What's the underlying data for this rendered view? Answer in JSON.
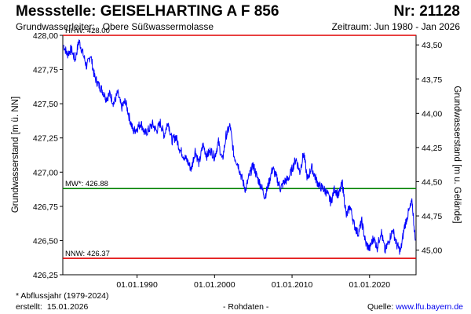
{
  "header": {
    "title": "Messstelle: GEISELHARTING A F 856",
    "nr": "Nr: 21128",
    "aquifer_label": "Grundwasserleiter:",
    "aquifer_value": "Obere Süßwassermolasse",
    "period": "Zeitraum: Jun 1980 - Jan 2026"
  },
  "footer": {
    "footnote": "* Abflussjahr (1979-2024)",
    "created_label": "erstellt:",
    "created_date": "15.01.2026",
    "raw_data": "- Rohdaten -",
    "source_label": "Quelle:",
    "source_link": "www.lfu.bayern.de"
  },
  "colors": {
    "series": "#0000ff",
    "hhw_nnw": "#e00000",
    "mw": "#008000",
    "link": "#0000ee"
  },
  "chart_data": {
    "type": "line",
    "title": "Messstelle: GEISELHARTING A F 856",
    "ylabel": "Grundwasserstand [m ü. NN]",
    "ylabel_right": "Grundwasserstand [m u. Gelände]",
    "xlim": [
      "1980-06",
      "2026-01"
    ],
    "ylim": [
      426.25,
      428.0
    ],
    "y2lim": [
      43.43,
      45.18
    ],
    "x_tick_labels": [
      "01.01.1990",
      "01.01.2000",
      "01.01.2010",
      "01.01.2020"
    ],
    "x_tick_years": [
      1990,
      2000,
      2010,
      2020
    ],
    "y_tick_labels": [
      "428,00",
      "427,75",
      "427,50",
      "427,25",
      "427,00",
      "426,75",
      "426,50",
      "426,25"
    ],
    "y_tick_values": [
      428.0,
      427.75,
      427.5,
      427.25,
      427.0,
      426.75,
      426.5,
      426.25
    ],
    "y2_tick_labels": [
      "43,50",
      "43,75",
      "44,00",
      "44,25",
      "44,50",
      "44,75",
      "45,00"
    ],
    "y2_tick_values": [
      43.5,
      43.75,
      44.0,
      44.25,
      44.5,
      44.75,
      45.0
    ],
    "reference_lines": [
      {
        "label": "HHW: 428.00",
        "value": 428.0,
        "color": "#e00000"
      },
      {
        "label": "MW*: 426.88",
        "value": 426.88,
        "color": "#008000"
      },
      {
        "label": "NNW: 426.37",
        "value": 426.37,
        "color": "#e00000"
      }
    ],
    "x": [
      1980.5,
      1981.0,
      1981.5,
      1982.0,
      1982.5,
      1983.0,
      1983.5,
      1984.0,
      1984.5,
      1985.0,
      1985.5,
      1986.0,
      1986.5,
      1987.0,
      1987.5,
      1988.0,
      1988.5,
      1989.0,
      1989.5,
      1990.0,
      1990.5,
      1991.0,
      1991.5,
      1992.0,
      1992.5,
      1993.0,
      1993.5,
      1994.0,
      1994.5,
      1995.0,
      1995.5,
      1996.0,
      1996.5,
      1997.0,
      1997.5,
      1998.0,
      1998.5,
      1999.0,
      1999.5,
      2000.0,
      2000.5,
      2001.0,
      2001.5,
      2002.0,
      2002.5,
      2003.0,
      2003.5,
      2004.0,
      2004.5,
      2005.0,
      2005.5,
      2006.0,
      2006.5,
      2007.0,
      2007.5,
      2008.0,
      2008.5,
      2009.0,
      2009.5,
      2010.0,
      2010.5,
      2011.0,
      2011.5,
      2012.0,
      2012.5,
      2013.0,
      2013.5,
      2014.0,
      2014.5,
      2015.0,
      2015.5,
      2016.0,
      2016.5,
      2017.0,
      2017.5,
      2018.0,
      2018.5,
      2019.0,
      2019.5,
      2020.0,
      2020.5,
      2021.0,
      2021.5,
      2022.0,
      2022.5,
      2023.0,
      2023.5,
      2024.0,
      2024.5,
      2025.0,
      2025.5,
      2025.9
    ],
    "values": [
      427.93,
      427.86,
      427.9,
      427.82,
      427.96,
      427.87,
      427.77,
      427.86,
      427.7,
      427.64,
      427.6,
      427.54,
      427.57,
      427.5,
      427.58,
      427.47,
      427.52,
      427.4,
      427.3,
      427.32,
      427.36,
      427.28,
      427.31,
      427.35,
      427.3,
      427.36,
      427.27,
      427.37,
      427.23,
      427.26,
      427.17,
      427.12,
      427.08,
      427.02,
      427.16,
      427.06,
      427.2,
      427.12,
      427.16,
      427.11,
      427.22,
      427.08,
      427.27,
      427.34,
      427.12,
      427.06,
      426.96,
      426.87,
      426.98,
      427.05,
      426.96,
      426.9,
      426.82,
      426.92,
      427.03,
      426.96,
      426.88,
      426.93,
      426.95,
      427.02,
      427.1,
      427.0,
      427.14,
      426.94,
      427.04,
      426.96,
      426.9,
      426.88,
      426.85,
      426.78,
      426.88,
      426.83,
      426.92,
      426.68,
      426.75,
      426.62,
      426.55,
      426.64,
      426.48,
      426.44,
      426.52,
      426.45,
      426.57,
      426.42,
      426.5,
      426.58,
      426.47,
      426.42,
      426.6,
      426.7,
      426.78,
      426.5
    ]
  }
}
